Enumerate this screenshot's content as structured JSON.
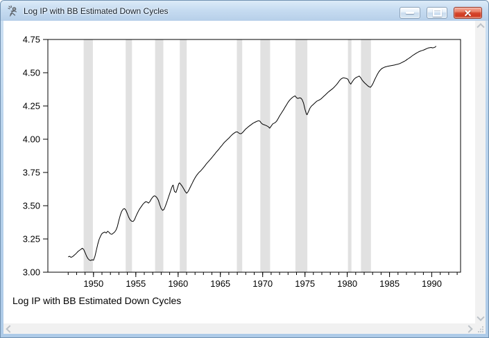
{
  "window": {
    "title": "Log IP with BB Estimated Down Cycles",
    "icons": {
      "app": "rats-figure-icon",
      "minimize": "dash",
      "maximize": "square",
      "close": "x-cross",
      "scroll_up": "chevron-up",
      "scroll_down": "chevron-down",
      "scroll_left": "chevron-left",
      "scroll_right": "chevron-right",
      "resize_grip": "diagonal-dots"
    }
  },
  "chart_data": {
    "type": "line",
    "title": "Log IP with BB Estimated Down Cycles",
    "caption": "Log IP with BB Estimated Down Cycles",
    "xlabel": "",
    "ylabel": "",
    "xlim": [
      1944.6,
      1993.4
    ],
    "ylim": [
      3.0,
      4.75
    ],
    "grid": false,
    "legend": "none",
    "y_ticks": [
      "3.00",
      "3.25",
      "3.50",
      "3.75",
      "4.00",
      "4.25",
      "4.50",
      "4.75"
    ],
    "x_major_ticks": [
      1950,
      1955,
      1960,
      1965,
      1970,
      1975,
      1980,
      1985,
      1990
    ],
    "x_minor_ticks": {
      "from": 1947,
      "to": 1993,
      "step": 1
    },
    "line_color": "#000000",
    "band_color": "#e1e1e1",
    "frame_color": "#000000",
    "down_cycles": [
      [
        1948.83,
        1949.92
      ],
      [
        1953.8,
        1954.55
      ],
      [
        1957.28,
        1958.26
      ],
      [
        1960.2,
        1961.02
      ],
      [
        1966.95,
        1967.58
      ],
      [
        1969.72,
        1970.88
      ],
      [
        1973.87,
        1975.28
      ],
      [
        1980.08,
        1980.5
      ],
      [
        1981.62,
        1982.8
      ]
    ],
    "series": [
      {
        "name": "Log IP",
        "points": [
          [
            1947.0,
            3.115
          ],
          [
            1947.17,
            3.12
          ],
          [
            1947.33,
            3.112
          ],
          [
            1947.5,
            3.116
          ],
          [
            1947.67,
            3.125
          ],
          [
            1947.83,
            3.134
          ],
          [
            1948.0,
            3.145
          ],
          [
            1948.17,
            3.156
          ],
          [
            1948.33,
            3.164
          ],
          [
            1948.5,
            3.172
          ],
          [
            1948.67,
            3.18
          ],
          [
            1948.83,
            3.172
          ],
          [
            1949.0,
            3.148
          ],
          [
            1949.17,
            3.122
          ],
          [
            1949.33,
            3.103
          ],
          [
            1949.5,
            3.092
          ],
          [
            1949.67,
            3.088
          ],
          [
            1949.83,
            3.094
          ],
          [
            1950.0,
            3.09
          ],
          [
            1950.17,
            3.12
          ],
          [
            1950.33,
            3.165
          ],
          [
            1950.5,
            3.21
          ],
          [
            1950.67,
            3.248
          ],
          [
            1950.83,
            3.272
          ],
          [
            1951.0,
            3.29
          ],
          [
            1951.17,
            3.298
          ],
          [
            1951.33,
            3.302
          ],
          [
            1951.5,
            3.295
          ],
          [
            1951.67,
            3.308
          ],
          [
            1951.83,
            3.3
          ],
          [
            1952.0,
            3.288
          ],
          [
            1952.17,
            3.285
          ],
          [
            1952.33,
            3.293
          ],
          [
            1952.5,
            3.302
          ],
          [
            1952.67,
            3.318
          ],
          [
            1952.83,
            3.345
          ],
          [
            1953.0,
            3.39
          ],
          [
            1953.17,
            3.43
          ],
          [
            1953.33,
            3.458
          ],
          [
            1953.5,
            3.474
          ],
          [
            1953.67,
            3.478
          ],
          [
            1953.83,
            3.466
          ],
          [
            1954.0,
            3.44
          ],
          [
            1954.17,
            3.412
          ],
          [
            1954.33,
            3.394
          ],
          [
            1954.5,
            3.384
          ],
          [
            1954.67,
            3.381
          ],
          [
            1954.83,
            3.392
          ],
          [
            1955.0,
            3.418
          ],
          [
            1955.17,
            3.442
          ],
          [
            1955.33,
            3.462
          ],
          [
            1955.5,
            3.48
          ],
          [
            1955.67,
            3.496
          ],
          [
            1955.83,
            3.51
          ],
          [
            1956.0,
            3.522
          ],
          [
            1956.17,
            3.53
          ],
          [
            1956.33,
            3.528
          ],
          [
            1956.5,
            3.52
          ],
          [
            1956.67,
            3.532
          ],
          [
            1956.83,
            3.55
          ],
          [
            1957.0,
            3.565
          ],
          [
            1957.17,
            3.574
          ],
          [
            1957.33,
            3.572
          ],
          [
            1957.5,
            3.56
          ],
          [
            1957.67,
            3.54
          ],
          [
            1957.83,
            3.508
          ],
          [
            1958.0,
            3.478
          ],
          [
            1958.17,
            3.465
          ],
          [
            1958.33,
            3.472
          ],
          [
            1958.5,
            3.498
          ],
          [
            1958.67,
            3.528
          ],
          [
            1958.83,
            3.558
          ],
          [
            1959.0,
            3.59
          ],
          [
            1959.17,
            3.622
          ],
          [
            1959.33,
            3.65
          ],
          [
            1959.42,
            3.655
          ],
          [
            1959.5,
            3.625
          ],
          [
            1959.58,
            3.606
          ],
          [
            1959.75,
            3.6
          ],
          [
            1959.92,
            3.632
          ],
          [
            1960.08,
            3.665
          ],
          [
            1960.17,
            3.672
          ],
          [
            1960.33,
            3.66
          ],
          [
            1960.5,
            3.645
          ],
          [
            1960.67,
            3.627
          ],
          [
            1960.83,
            3.608
          ],
          [
            1961.0,
            3.594
          ],
          [
            1961.17,
            3.605
          ],
          [
            1961.33,
            3.625
          ],
          [
            1961.5,
            3.648
          ],
          [
            1961.67,
            3.668
          ],
          [
            1961.83,
            3.69
          ],
          [
            1962.0,
            3.71
          ],
          [
            1962.17,
            3.726
          ],
          [
            1962.33,
            3.74
          ],
          [
            1962.5,
            3.752
          ],
          [
            1962.67,
            3.762
          ],
          [
            1962.83,
            3.774
          ],
          [
            1963.0,
            3.786
          ],
          [
            1963.17,
            3.8
          ],
          [
            1963.33,
            3.814
          ],
          [
            1963.5,
            3.826
          ],
          [
            1963.67,
            3.838
          ],
          [
            1963.83,
            3.85
          ],
          [
            1964.0,
            3.862
          ],
          [
            1964.17,
            3.876
          ],
          [
            1964.33,
            3.888
          ],
          [
            1964.5,
            3.902
          ],
          [
            1964.67,
            3.914
          ],
          [
            1964.83,
            3.926
          ],
          [
            1965.0,
            3.94
          ],
          [
            1965.17,
            3.952
          ],
          [
            1965.33,
            3.966
          ],
          [
            1965.5,
            3.978
          ],
          [
            1965.67,
            3.988
          ],
          [
            1965.83,
            3.998
          ],
          [
            1966.0,
            4.008
          ],
          [
            1966.17,
            4.02
          ],
          [
            1966.33,
            4.03
          ],
          [
            1966.5,
            4.04
          ],
          [
            1966.67,
            4.048
          ],
          [
            1966.83,
            4.054
          ],
          [
            1967.0,
            4.055
          ],
          [
            1967.17,
            4.047
          ],
          [
            1967.33,
            4.041
          ],
          [
            1967.5,
            4.043
          ],
          [
            1967.67,
            4.053
          ],
          [
            1967.83,
            4.065
          ],
          [
            1968.0,
            4.077
          ],
          [
            1968.17,
            4.086
          ],
          [
            1968.33,
            4.095
          ],
          [
            1968.5,
            4.103
          ],
          [
            1968.67,
            4.111
          ],
          [
            1968.83,
            4.119
          ],
          [
            1969.0,
            4.125
          ],
          [
            1969.17,
            4.13
          ],
          [
            1969.33,
            4.135
          ],
          [
            1969.5,
            4.139
          ],
          [
            1969.67,
            4.136
          ],
          [
            1969.83,
            4.122
          ],
          [
            1970.0,
            4.113
          ],
          [
            1970.17,
            4.109
          ],
          [
            1970.33,
            4.105
          ],
          [
            1970.5,
            4.1
          ],
          [
            1970.67,
            4.094
          ],
          [
            1970.83,
            4.083
          ],
          [
            1971.0,
            4.098
          ],
          [
            1971.17,
            4.114
          ],
          [
            1971.33,
            4.12
          ],
          [
            1971.5,
            4.126
          ],
          [
            1971.67,
            4.138
          ],
          [
            1971.83,
            4.155
          ],
          [
            1972.0,
            4.175
          ],
          [
            1972.17,
            4.192
          ],
          [
            1972.33,
            4.208
          ],
          [
            1972.5,
            4.225
          ],
          [
            1972.67,
            4.243
          ],
          [
            1972.83,
            4.26
          ],
          [
            1973.0,
            4.278
          ],
          [
            1973.17,
            4.292
          ],
          [
            1973.33,
            4.303
          ],
          [
            1973.5,
            4.313
          ],
          [
            1973.67,
            4.321
          ],
          [
            1973.83,
            4.326
          ],
          [
            1974.0,
            4.312
          ],
          [
            1974.17,
            4.306
          ],
          [
            1974.33,
            4.311
          ],
          [
            1974.5,
            4.31
          ],
          [
            1974.67,
            4.298
          ],
          [
            1974.83,
            4.272
          ],
          [
            1975.0,
            4.225
          ],
          [
            1975.17,
            4.19
          ],
          [
            1975.25,
            4.184
          ],
          [
            1975.42,
            4.208
          ],
          [
            1975.58,
            4.232
          ],
          [
            1975.75,
            4.248
          ],
          [
            1975.92,
            4.258
          ],
          [
            1976.08,
            4.267
          ],
          [
            1976.25,
            4.277
          ],
          [
            1976.42,
            4.287
          ],
          [
            1976.58,
            4.291
          ],
          [
            1976.75,
            4.297
          ],
          [
            1976.92,
            4.304
          ],
          [
            1977.08,
            4.314
          ],
          [
            1977.25,
            4.324
          ],
          [
            1977.42,
            4.334
          ],
          [
            1977.58,
            4.344
          ],
          [
            1977.75,
            4.354
          ],
          [
            1977.92,
            4.363
          ],
          [
            1978.08,
            4.371
          ],
          [
            1978.25,
            4.379
          ],
          [
            1978.42,
            4.389
          ],
          [
            1978.58,
            4.4
          ],
          [
            1978.75,
            4.412
          ],
          [
            1978.92,
            4.426
          ],
          [
            1979.08,
            4.44
          ],
          [
            1979.25,
            4.452
          ],
          [
            1979.42,
            4.459
          ],
          [
            1979.58,
            4.462
          ],
          [
            1979.75,
            4.459
          ],
          [
            1979.92,
            4.457
          ],
          [
            1980.08,
            4.451
          ],
          [
            1980.25,
            4.427
          ],
          [
            1980.42,
            4.414
          ],
          [
            1980.58,
            4.43
          ],
          [
            1980.75,
            4.447
          ],
          [
            1980.92,
            4.458
          ],
          [
            1981.08,
            4.465
          ],
          [
            1981.25,
            4.47
          ],
          [
            1981.42,
            4.475
          ],
          [
            1981.58,
            4.463
          ],
          [
            1981.75,
            4.446
          ],
          [
            1981.92,
            4.433
          ],
          [
            1982.08,
            4.422
          ],
          [
            1982.25,
            4.412
          ],
          [
            1982.42,
            4.402
          ],
          [
            1982.58,
            4.395
          ],
          [
            1982.75,
            4.39
          ],
          [
            1982.92,
            4.404
          ],
          [
            1983.08,
            4.424
          ],
          [
            1983.25,
            4.448
          ],
          [
            1983.42,
            4.47
          ],
          [
            1983.58,
            4.49
          ],
          [
            1983.75,
            4.508
          ],
          [
            1983.92,
            4.521
          ],
          [
            1984.08,
            4.531
          ],
          [
            1984.25,
            4.537
          ],
          [
            1984.42,
            4.542
          ],
          [
            1984.58,
            4.545
          ],
          [
            1984.75,
            4.548
          ],
          [
            1984.92,
            4.55
          ],
          [
            1985.08,
            4.552
          ],
          [
            1985.25,
            4.554
          ],
          [
            1985.42,
            4.556
          ],
          [
            1985.58,
            4.558
          ],
          [
            1985.75,
            4.561
          ],
          [
            1985.92,
            4.563
          ],
          [
            1986.08,
            4.566
          ],
          [
            1986.25,
            4.57
          ],
          [
            1986.42,
            4.575
          ],
          [
            1986.58,
            4.58
          ],
          [
            1986.75,
            4.586
          ],
          [
            1986.92,
            4.592
          ],
          [
            1987.08,
            4.6
          ],
          [
            1987.25,
            4.607
          ],
          [
            1987.42,
            4.614
          ],
          [
            1987.58,
            4.622
          ],
          [
            1987.75,
            4.63
          ],
          [
            1987.92,
            4.637
          ],
          [
            1988.08,
            4.644
          ],
          [
            1988.25,
            4.65
          ],
          [
            1988.42,
            4.656
          ],
          [
            1988.58,
            4.661
          ],
          [
            1988.75,
            4.665
          ],
          [
            1988.92,
            4.668
          ],
          [
            1989.08,
            4.672
          ],
          [
            1989.25,
            4.677
          ],
          [
            1989.42,
            4.682
          ],
          [
            1989.58,
            4.686
          ],
          [
            1989.75,
            4.688
          ],
          [
            1989.92,
            4.69
          ],
          [
            1990.08,
            4.687
          ],
          [
            1990.25,
            4.689
          ],
          [
            1990.42,
            4.694
          ],
          [
            1990.5,
            4.7
          ]
        ]
      }
    ]
  }
}
